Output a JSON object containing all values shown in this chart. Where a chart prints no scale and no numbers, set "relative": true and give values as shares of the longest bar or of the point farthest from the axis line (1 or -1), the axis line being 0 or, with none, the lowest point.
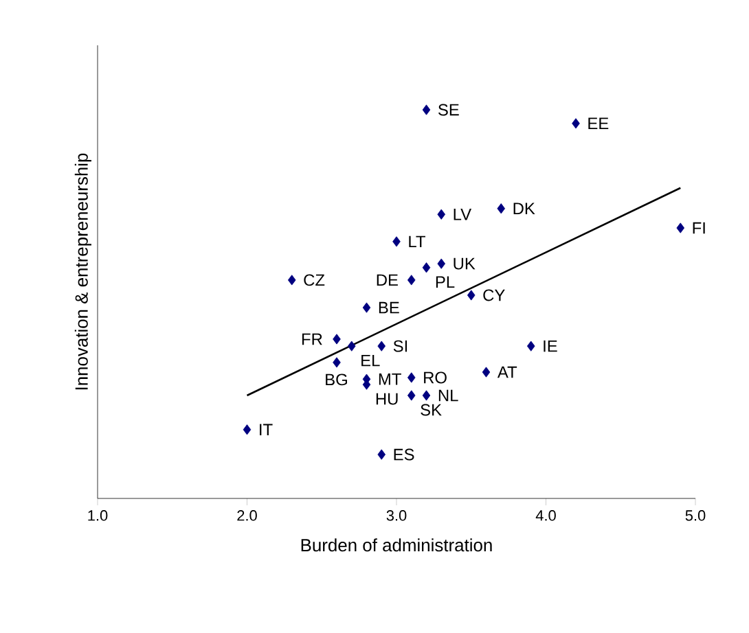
{
  "chart_data": {
    "type": "scatter",
    "xlabel": "Burden of administration",
    "ylabel": "Innovation & entrepreneurship",
    "relative": true,
    "tick_labels": "x",
    "grid": false,
    "xlim": [
      1,
      5
    ],
    "xticks": [
      {
        "value": 1,
        "label": "1.0"
      },
      {
        "value": 2,
        "label": "2.0"
      },
      {
        "value": 3,
        "label": "3.0"
      },
      {
        "value": 4,
        "label": "4.0"
      },
      {
        "value": 5,
        "label": "5.0"
      }
    ],
    "series": [
      {
        "marker": "diamond",
        "color": "#000080",
        "x": [
          3.2,
          4.2,
          3.7,
          3.3,
          4.9,
          3.0,
          3.3,
          3.2,
          3.1,
          2.3,
          3.5,
          2.8,
          2.6,
          2.7,
          2.9,
          2.6,
          3.6,
          3.9,
          2.8,
          2.8,
          3.1,
          3.1,
          3.2,
          2.9,
          2.0
        ],
        "values": [
          1.0,
          0.965,
          0.746,
          0.731,
          0.696,
          0.661,
          0.604,
          0.594,
          0.562,
          0.562,
          0.523,
          0.491,
          0.41,
          0.392,
          0.392,
          0.35,
          0.325,
          0.392,
          0.307,
          0.293,
          0.311,
          0.265,
          0.265,
          0.113,
          0.177
        ]
      },
      {
        "type": "line",
        "marker": "none",
        "color": "#000000",
        "x": [
          2.0,
          4.9
        ],
        "values": [
          0.265,
          0.799
        ]
      }
    ],
    "annotations": [
      {
        "text": "SE",
        "x": 3.2,
        "y": 1.0
      },
      {
        "text": "EE",
        "x": 4.2,
        "y": 0.965
      },
      {
        "text": "DK",
        "x": 3.7,
        "y": 0.746
      },
      {
        "text": "LV",
        "x": 3.3,
        "y": 0.731
      },
      {
        "text": "FI",
        "x": 4.9,
        "y": 0.696
      },
      {
        "text": "LT",
        "x": 3.0,
        "y": 0.661
      },
      {
        "text": "UK",
        "x": 3.3,
        "y": 0.604
      },
      {
        "text": "PL",
        "x": 3.2,
        "y": 0.594
      },
      {
        "text": "DE",
        "x": 3.1,
        "y": 0.562
      },
      {
        "text": "CZ",
        "x": 2.3,
        "y": 0.562
      },
      {
        "text": "CY",
        "x": 3.5,
        "y": 0.523
      },
      {
        "text": "BE",
        "x": 2.8,
        "y": 0.491
      },
      {
        "text": "FR",
        "x": 2.6,
        "y": 0.41
      },
      {
        "text": "EL",
        "x": 2.7,
        "y": 0.392
      },
      {
        "text": "SI",
        "x": 2.9,
        "y": 0.392
      },
      {
        "text": "BG",
        "x": 2.6,
        "y": 0.35
      },
      {
        "text": "AT",
        "x": 3.6,
        "y": 0.325
      },
      {
        "text": "IE",
        "x": 3.9,
        "y": 0.392
      },
      {
        "text": "MT",
        "x": 2.8,
        "y": 0.307
      },
      {
        "text": "HU",
        "x": 2.8,
        "y": 0.293
      },
      {
        "text": "RO",
        "x": 3.1,
        "y": 0.311
      },
      {
        "text": "SK",
        "x": 3.1,
        "y": 0.265
      },
      {
        "text": "NL",
        "x": 3.2,
        "y": 0.265
      },
      {
        "text": "ES",
        "x": 2.9,
        "y": 0.113
      },
      {
        "text": "IT",
        "x": 2.0,
        "y": 0.177
      }
    ]
  }
}
